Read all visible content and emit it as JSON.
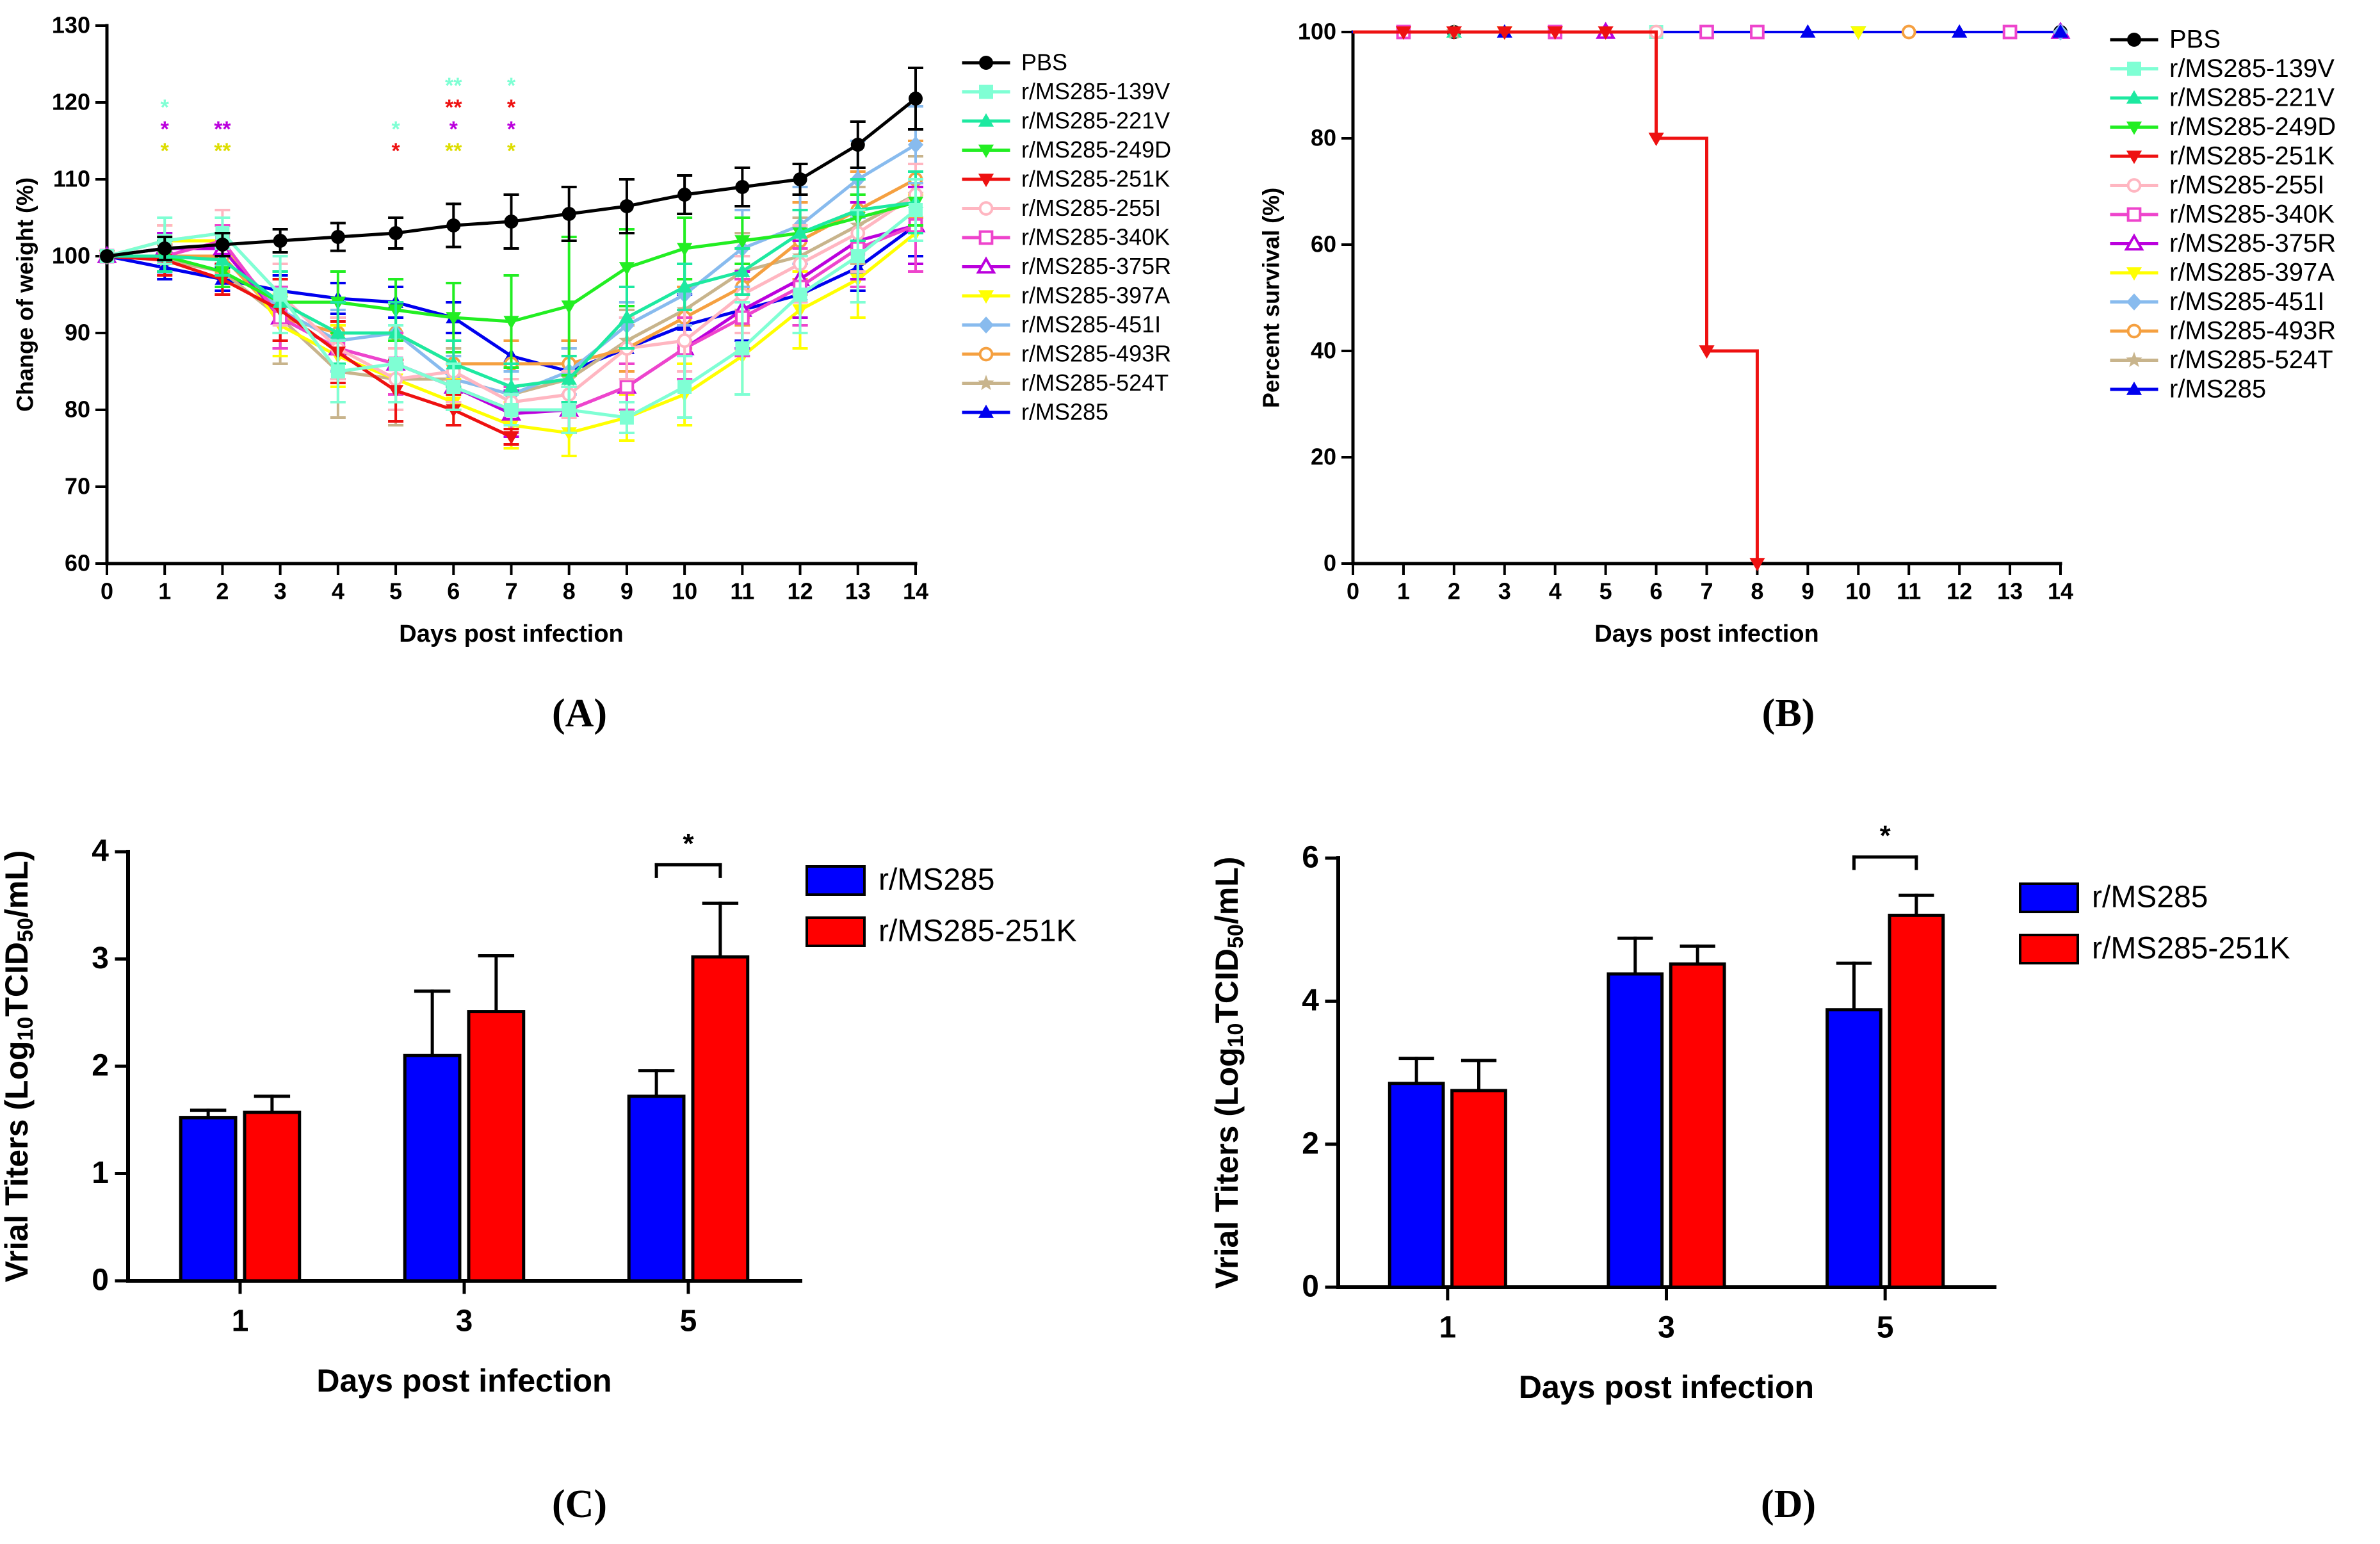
{
  "panels": {
    "A": "(A)",
    "B": "(B)",
    "C": "(C)",
    "D": "(D)"
  },
  "series_styles": [
    {
      "name": "PBS",
      "color": "#000000",
      "marker": "circle"
    },
    {
      "name": "r/MS285-139V",
      "color": "#7FFFD4",
      "marker": "square"
    },
    {
      "name": "r/MS285-221V",
      "color": "#1DE9A0",
      "marker": "triangle-up"
    },
    {
      "name": "r/MS285-249D",
      "color": "#22EE22",
      "marker": "triangle-down"
    },
    {
      "name": "r/MS285-251K",
      "color": "#EE1111",
      "marker": "triangle-down"
    },
    {
      "name": "r/MS285-255I",
      "color": "#FFB6C1",
      "marker": "circle-open"
    },
    {
      "name": "r/MS285-340K",
      "color": "#EE44CC",
      "marker": "square-open"
    },
    {
      "name": "r/MS285-375R",
      "color": "#BB00DD",
      "marker": "triangle-open"
    },
    {
      "name": "r/MS285-397A",
      "color": "#FFFF00",
      "marker": "triangle-down"
    },
    {
      "name": "r/MS285-451I",
      "color": "#88BBEE",
      "marker": "diamond"
    },
    {
      "name": "r/MS285-493R",
      "color": "#F5A040",
      "marker": "circle-open"
    },
    {
      "name": "r/MS285-524T",
      "color": "#C8B48C",
      "marker": "star"
    },
    {
      "name": "r/MS285",
      "color": "#0000EE",
      "marker": "triangle-up"
    }
  ],
  "chart_data": [
    {
      "panel": "A",
      "type": "line",
      "xlabel": "Days post infection",
      "ylabel": "Change of weight (%)",
      "xlim": [
        0,
        14
      ],
      "ylim": [
        60,
        130
      ],
      "xticks": [
        "0",
        "1",
        "2",
        "3",
        "4",
        "5",
        "6",
        "7",
        "8",
        "9",
        "10",
        "11",
        "12",
        "13",
        "14"
      ],
      "yticks": [
        "60",
        "70",
        "80",
        "90",
        "100",
        "110",
        "120",
        "130"
      ],
      "x": [
        0,
        1,
        2,
        3,
        4,
        5,
        6,
        7,
        8,
        9,
        10,
        11,
        12,
        13,
        14
      ],
      "series": [
        {
          "name": "PBS",
          "values": [
            100,
            101,
            101.5,
            102,
            102.5,
            103,
            104,
            104.5,
            105.5,
            106.5,
            108,
            109,
            110,
            114.5,
            120.5
          ],
          "errors": [
            0,
            1.5,
            1.5,
            1.5,
            1.8,
            2,
            2.8,
            3.5,
            3.5,
            3.5,
            2.5,
            2.5,
            2,
            3,
            4
          ]
        },
        {
          "name": "r/MS285-139V",
          "values": [
            100,
            102,
            103,
            95,
            85,
            86,
            83,
            80,
            80,
            79,
            83,
            88,
            95,
            100,
            106
          ],
          "errors": [
            0,
            3,
            2,
            5,
            4,
            5,
            3,
            2,
            3,
            2,
            4,
            6,
            5,
            6,
            4
          ]
        },
        {
          "name": "r/MS285-221V",
          "values": [
            100,
            100,
            99.5,
            94,
            90,
            90,
            86,
            83,
            84,
            92,
            96,
            98,
            103,
            106,
            107
          ],
          "errors": [
            0,
            2,
            2,
            4,
            4,
            4,
            3,
            3,
            3,
            4,
            3,
            3,
            3,
            4,
            4
          ]
        },
        {
          "name": "r/MS285-249D",
          "values": [
            100,
            100,
            98,
            94,
            94,
            93,
            92,
            91.5,
            93.5,
            98.5,
            101,
            102,
            103,
            105,
            107
          ],
          "errors": [
            0,
            2,
            2,
            4,
            4,
            4,
            4.5,
            6,
            9,
            5,
            4,
            3,
            3,
            3,
            3
          ]
        },
        {
          "name": "r/MS285-251K",
          "values": [
            100,
            99.5,
            97,
            93,
            87.5,
            82.5,
            80,
            76.5,
            null,
            null,
            null,
            null,
            null,
            null,
            null
          ],
          "errors": [
            0,
            2,
            2,
            4,
            4,
            4,
            2,
            1,
            0,
            0,
            0,
            0,
            0,
            0,
            0
          ]
        },
        {
          "name": "r/MS285-255I",
          "values": [
            100,
            102,
            103,
            95,
            88,
            84,
            85,
            81,
            82,
            88,
            89,
            95,
            99,
            103,
            108
          ],
          "errors": [
            0,
            2,
            3,
            4,
            4,
            4,
            4,
            3,
            3,
            4,
            4,
            5,
            5,
            5,
            4
          ]
        },
        {
          "name": "r/MS285-340K",
          "values": [
            100,
            100,
            102,
            92,
            88,
            86,
            83,
            80,
            80,
            83,
            88,
            92,
            96,
            101,
            104
          ],
          "errors": [
            0,
            2,
            2,
            4,
            4,
            4,
            3,
            3,
            3,
            3,
            4,
            5,
            5,
            5,
            6
          ]
        },
        {
          "name": "r/MS285-375R",
          "values": [
            100,
            101,
            101,
            92,
            88,
            86,
            83,
            79.5,
            80,
            83,
            88,
            93,
            97,
            102,
            104
          ],
          "errors": [
            0,
            2,
            2,
            4,
            4,
            4,
            3,
            3,
            3,
            3,
            4,
            5,
            5,
            5,
            5
          ]
        },
        {
          "name": "r/MS285-397A",
          "values": [
            100,
            102,
            102,
            91,
            87,
            84,
            81,
            78,
            77,
            79,
            82,
            87,
            93,
            97,
            103
          ],
          "errors": [
            0,
            2,
            2,
            4,
            4,
            4,
            3,
            3,
            3,
            3,
            4,
            5,
            5,
            5,
            5
          ]
        },
        {
          "name": "r/MS285-451I",
          "values": [
            100,
            101,
            101,
            93,
            89,
            90,
            84,
            82,
            85,
            91,
            95,
            101,
            104,
            110,
            114.5
          ],
          "errors": [
            0,
            2,
            2,
            4,
            4,
            4,
            3,
            3,
            3,
            3,
            4,
            5,
            5,
            5,
            5
          ]
        },
        {
          "name": "r/MS285-493R",
          "values": [
            100,
            100,
            100,
            92,
            90,
            90,
            86,
            86,
            86,
            88,
            92,
            96,
            102,
            106,
            110
          ],
          "errors": [
            0,
            2,
            2,
            4,
            4,
            4,
            3,
            3,
            3,
            3,
            4,
            5,
            5,
            5,
            5
          ]
        },
        {
          "name": "r/MS285-524T",
          "values": [
            100,
            99.5,
            98,
            92,
            85,
            84,
            84,
            82,
            84,
            89,
            93,
            98,
            100,
            104,
            108
          ],
          "errors": [
            0,
            2,
            3,
            6,
            6,
            6,
            4,
            4,
            4,
            4,
            4,
            5,
            5,
            5,
            5
          ]
        },
        {
          "name": "r/MS285",
          "values": [
            100,
            98.5,
            97,
            95.5,
            94.5,
            94,
            92,
            87,
            85,
            88,
            91,
            93,
            95,
            98.5,
            104
          ],
          "errors": [
            0,
            1.5,
            1.5,
            2,
            2,
            2,
            2,
            2,
            4,
            4,
            4,
            4,
            4,
            3,
            4
          ]
        }
      ],
      "annotations": [
        {
          "day": 1,
          "marks": [
            {
              "text": "*",
              "color": "#7FFFD4"
            },
            {
              "text": "*",
              "color": "#BB00DD"
            },
            {
              "text": "*",
              "color": "#DDDD00"
            }
          ]
        },
        {
          "day": 2,
          "marks": [
            {
              "text": "**",
              "color": "#BB00DD"
            },
            {
              "text": "**",
              "color": "#DDDD00"
            }
          ]
        },
        {
          "day": 5,
          "marks": [
            {
              "text": "*",
              "color": "#7FFFD4"
            },
            {
              "text": "*",
              "color": "#EE1111"
            }
          ]
        },
        {
          "day": 6,
          "marks": [
            {
              "text": "**",
              "color": "#7FFFD4"
            },
            {
              "text": "**",
              "color": "#EE1111"
            },
            {
              "text": "*",
              "color": "#BB00DD"
            },
            {
              "text": "**",
              "color": "#DDDD00"
            }
          ]
        },
        {
          "day": 7,
          "marks": [
            {
              "text": "*",
              "color": "#7FFFD4"
            },
            {
              "text": "*",
              "color": "#EE1111"
            },
            {
              "text": "*",
              "color": "#BB00DD"
            },
            {
              "text": "*",
              "color": "#DDDD00"
            }
          ]
        }
      ]
    },
    {
      "panel": "B",
      "type": "line",
      "subtype": "survival-step",
      "xlabel": "Days post infection",
      "ylabel": "Percent survival (%)",
      "xlim": [
        0,
        14
      ],
      "ylim": [
        0,
        100
      ],
      "xticks": [
        "0",
        "1",
        "2",
        "3",
        "4",
        "5",
        "6",
        "7",
        "8",
        "9",
        "10",
        "11",
        "12",
        "13",
        "14"
      ],
      "yticks": [
        "0",
        "20",
        "40",
        "60",
        "80",
        "100"
      ],
      "series": [
        {
          "name": "PBS",
          "x": [
            0,
            14
          ],
          "values": [
            100,
            100
          ],
          "marker_days": [
            2,
            8,
            11,
            14
          ]
        },
        {
          "name": "r/MS285-139V",
          "x": [
            0,
            14
          ],
          "values": [
            100,
            100
          ],
          "marker_days": [
            6,
            13
          ]
        },
        {
          "name": "r/MS285-221V",
          "x": [
            0,
            14
          ],
          "values": [
            100,
            100
          ],
          "marker_days": [
            2
          ]
        },
        {
          "name": "r/MS285-249D",
          "x": [
            0,
            14
          ],
          "values": [
            100,
            100
          ],
          "marker_days": [
            10
          ]
        },
        {
          "name": "r/MS285-251K",
          "x": [
            0,
            6,
            7,
            8
          ],
          "values": [
            100,
            80,
            40,
            0
          ],
          "marker_days": [
            1,
            2,
            3,
            4,
            5,
            6,
            7,
            8
          ]
        },
        {
          "name": "r/MS285-255I",
          "x": [
            0,
            14
          ],
          "values": [
            100,
            100
          ],
          "marker_days": [
            6,
            11
          ]
        },
        {
          "name": "r/MS285-340K",
          "x": [
            0,
            14
          ],
          "values": [
            100,
            100
          ],
          "marker_days": [
            1,
            4,
            7,
            8,
            13
          ]
        },
        {
          "name": "r/MS285-375R",
          "x": [
            0,
            14
          ],
          "values": [
            100,
            100
          ],
          "marker_days": [
            5,
            14
          ]
        },
        {
          "name": "r/MS285-397A",
          "x": [
            0,
            14
          ],
          "values": [
            100,
            100
          ],
          "marker_days": [
            3,
            10
          ]
        },
        {
          "name": "r/MS285-451I",
          "x": [
            0,
            14
          ],
          "values": [
            100,
            100
          ],
          "marker_days": [
            14
          ]
        },
        {
          "name": "r/MS285-493R",
          "x": [
            0,
            14
          ],
          "values": [
            100,
            100
          ],
          "marker_days": [
            11
          ]
        },
        {
          "name": "r/MS285-524T",
          "x": [
            0,
            14
          ],
          "values": [
            100,
            100
          ],
          "marker_days": [
            2
          ]
        },
        {
          "name": "r/MS285",
          "x": [
            0,
            14
          ],
          "values": [
            100,
            100
          ],
          "marker_days": [
            3,
            9,
            12,
            14
          ]
        }
      ]
    },
    {
      "panel": "C",
      "type": "bar",
      "xlabel": "Days post infection",
      "ylabel_main": "Vrial Titers (Log",
      "ylabel_sub1": "10",
      "ylabel_mid": "TCID",
      "ylabel_sub2": "50",
      "ylabel_end": "/mL)",
      "categories": [
        "1",
        "3",
        "5"
      ],
      "ylim": [
        0,
        4
      ],
      "yticks": [
        "0",
        "1",
        "2",
        "3",
        "4"
      ],
      "series": [
        {
          "name": "r/MS285",
          "color": "#0000FF",
          "values": [
            1.52,
            2.1,
            1.72
          ],
          "errors": [
            0.07,
            0.6,
            0.24
          ]
        },
        {
          "name": "r/MS285-251K",
          "color": "#FF0000",
          "values": [
            1.57,
            2.51,
            3.02
          ],
          "errors": [
            0.15,
            0.52,
            0.5
          ]
        }
      ],
      "significance": {
        "category": "5",
        "label": "*"
      }
    },
    {
      "panel": "D",
      "type": "bar",
      "xlabel": "Days post infection",
      "ylabel_main": "Vrial Titers (Log",
      "ylabel_sub1": "10",
      "ylabel_mid": "TCID",
      "ylabel_sub2": "50",
      "ylabel_end": "/mL)",
      "categories": [
        "1",
        "3",
        "5"
      ],
      "ylim": [
        0,
        6
      ],
      "yticks": [
        "0",
        "2",
        "4",
        "6"
      ],
      "series": [
        {
          "name": "r/MS285",
          "color": "#0000FF",
          "values": [
            2.85,
            4.38,
            3.88
          ],
          "errors": [
            0.35,
            0.5,
            0.65
          ]
        },
        {
          "name": "r/MS285-251K",
          "color": "#FF0000",
          "values": [
            2.75,
            4.52,
            5.2
          ],
          "errors": [
            0.42,
            0.25,
            0.28
          ]
        }
      ],
      "significance": {
        "category": "5",
        "label": "*"
      }
    }
  ]
}
